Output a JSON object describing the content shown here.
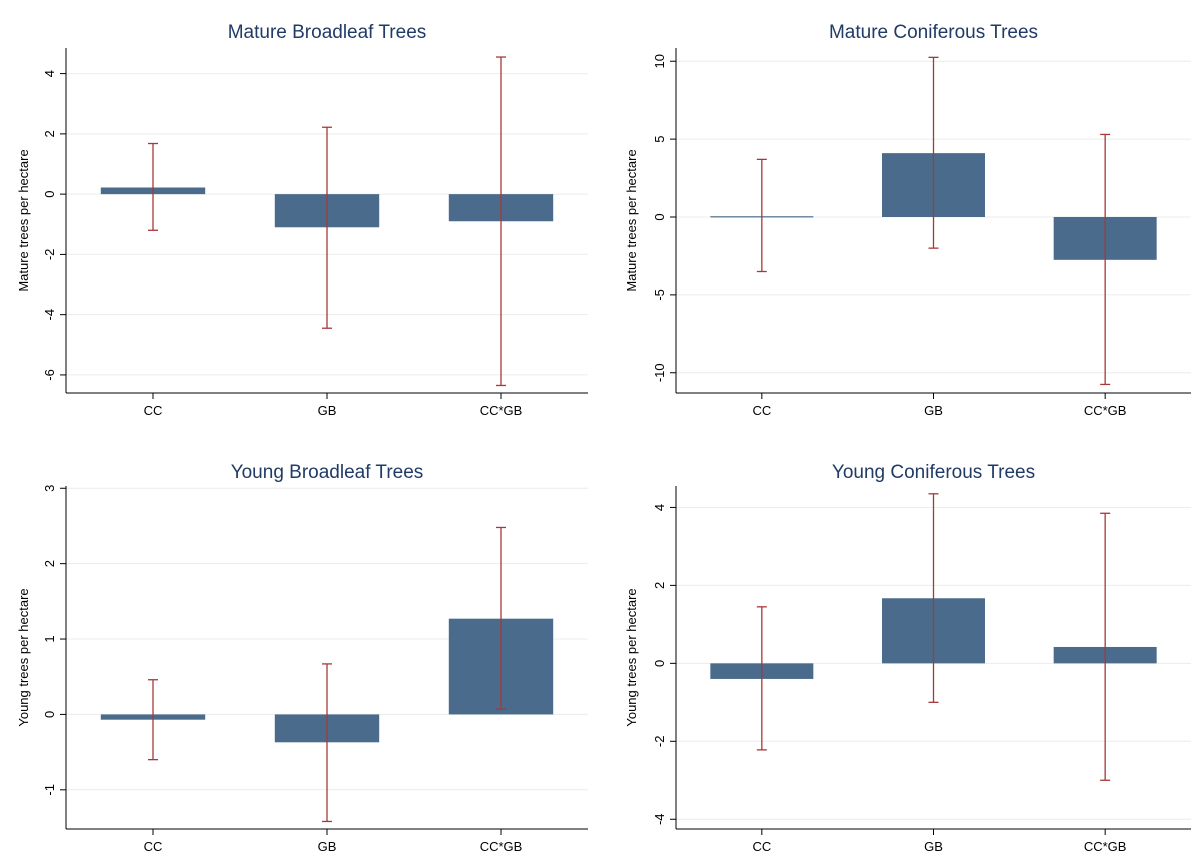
{
  "chart_data": [
    {
      "type": "bar",
      "title": "Mature Broadleaf Trees",
      "ylabel": "Mature trees per hectare",
      "xlabel": "",
      "categories": [
        "CC",
        "GB",
        "CC*GB"
      ],
      "values": [
        0.22,
        -1.1,
        -0.9
      ],
      "error_low": [
        -1.2,
        -4.45,
        -6.35
      ],
      "error_high": [
        1.68,
        2.22,
        4.55
      ],
      "ylim": [
        -6.6,
        4.85
      ],
      "yticks": [
        4,
        2,
        0,
        -2,
        -4,
        -6
      ],
      "grid": true,
      "bar_color": "#4a6b8c",
      "error_color": "#a83838"
    },
    {
      "type": "bar",
      "title": "Mature Coniferous Trees",
      "ylabel": "Mature trees per hectare",
      "xlabel": "",
      "categories": [
        "CC",
        "GB",
        "CC*GB"
      ],
      "values": [
        0.05,
        4.1,
        -2.75
      ],
      "error_low": [
        -3.5,
        -2.0,
        -10.75
      ],
      "error_high": [
        3.7,
        10.25,
        5.3
      ],
      "ylim": [
        -11.3,
        10.85
      ],
      "yticks": [
        10,
        5,
        0,
        -5,
        -10
      ],
      "grid": true,
      "bar_color": "#4a6b8c",
      "error_color": "#a83838"
    },
    {
      "type": "bar",
      "title": "Young Broadleaf Trees",
      "ylabel": "Young trees per hectare",
      "xlabel": "",
      "categories": [
        "CC",
        "GB",
        "CC*GB"
      ],
      "values": [
        -0.07,
        -0.37,
        1.27
      ],
      "error_low": [
        -0.6,
        -1.42,
        0.07
      ],
      "error_high": [
        0.46,
        0.67,
        2.48
      ],
      "ylim": [
        -1.52,
        3.03
      ],
      "yticks": [
        3,
        2,
        1,
        0,
        -1
      ],
      "grid": true,
      "bar_color": "#4a6b8c",
      "error_color": "#a83838"
    },
    {
      "type": "bar",
      "title": "Young Coniferous Trees",
      "ylabel": "Young trees per hectare",
      "xlabel": "",
      "categories": [
        "CC",
        "GB",
        "CC*GB"
      ],
      "values": [
        -0.4,
        1.67,
        0.42
      ],
      "error_low": [
        -2.22,
        -1.0,
        -3.0
      ],
      "error_high": [
        1.45,
        4.35,
        3.85
      ],
      "ylim": [
        -4.25,
        4.55
      ],
      "yticks": [
        4,
        2,
        0,
        -2,
        -4
      ],
      "grid": true,
      "bar_color": "#4a6b8c",
      "error_color": "#a83838"
    }
  ]
}
